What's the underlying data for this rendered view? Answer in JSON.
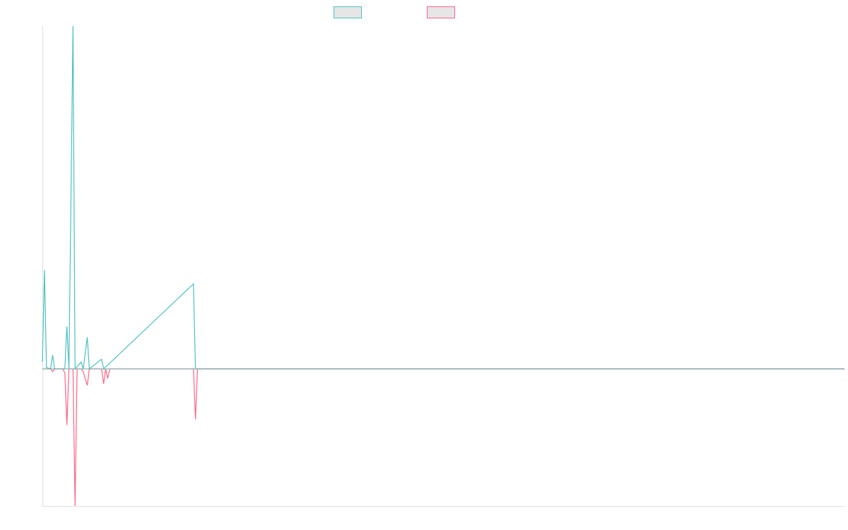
{
  "chart_data": {
    "type": "line",
    "title": "",
    "xlabel": "",
    "ylabel": "",
    "grid": false,
    "legend_position": "top-center",
    "ylim": [
      -1.0,
      2.5
    ],
    "xlim": [
      0,
      393
    ],
    "baseline": 0,
    "series": [
      {
        "color": "#4bc0c0",
        "points": [
          [
            0,
            0.05
          ],
          [
            1,
            0.72
          ],
          [
            2,
            0.01
          ],
          [
            4,
            0.0
          ],
          [
            5,
            0.1
          ],
          [
            6,
            0.0
          ],
          [
            10,
            0.0
          ],
          [
            11,
            0.0
          ],
          [
            12,
            0.31
          ],
          [
            13,
            0.0
          ],
          [
            15,
            2.5
          ],
          [
            16,
            0.0
          ],
          [
            19,
            0.05
          ],
          [
            20,
            0.0
          ],
          [
            22,
            0.23
          ],
          [
            23,
            0.0
          ],
          [
            29,
            0.07
          ],
          [
            30,
            0.0
          ],
          [
            74,
            0.62
          ],
          [
            75,
            0.0
          ],
          [
            393,
            0.0
          ]
        ]
      },
      {
        "color": "#ff6384",
        "points": [
          [
            0,
            0.0
          ],
          [
            4,
            0.0
          ],
          [
            5,
            -0.02
          ],
          [
            6,
            0.0
          ],
          [
            10,
            0.0
          ],
          [
            11,
            -0.03
          ],
          [
            12,
            -0.41
          ],
          [
            13,
            0.0
          ],
          [
            15,
            0.0
          ],
          [
            16,
            -1.0
          ],
          [
            17,
            0.0
          ],
          [
            19,
            0.0
          ],
          [
            20,
            -0.02
          ],
          [
            22,
            -0.12
          ],
          [
            23,
            0.0
          ],
          [
            29,
            0.0
          ],
          [
            30,
            -0.11
          ],
          [
            31,
            0.0
          ],
          [
            32,
            -0.07
          ],
          [
            33,
            0.0
          ],
          [
            74,
            0.0
          ],
          [
            75,
            -0.37
          ],
          [
            76,
            0.0
          ],
          [
            393,
            0.0
          ]
        ]
      }
    ]
  }
}
